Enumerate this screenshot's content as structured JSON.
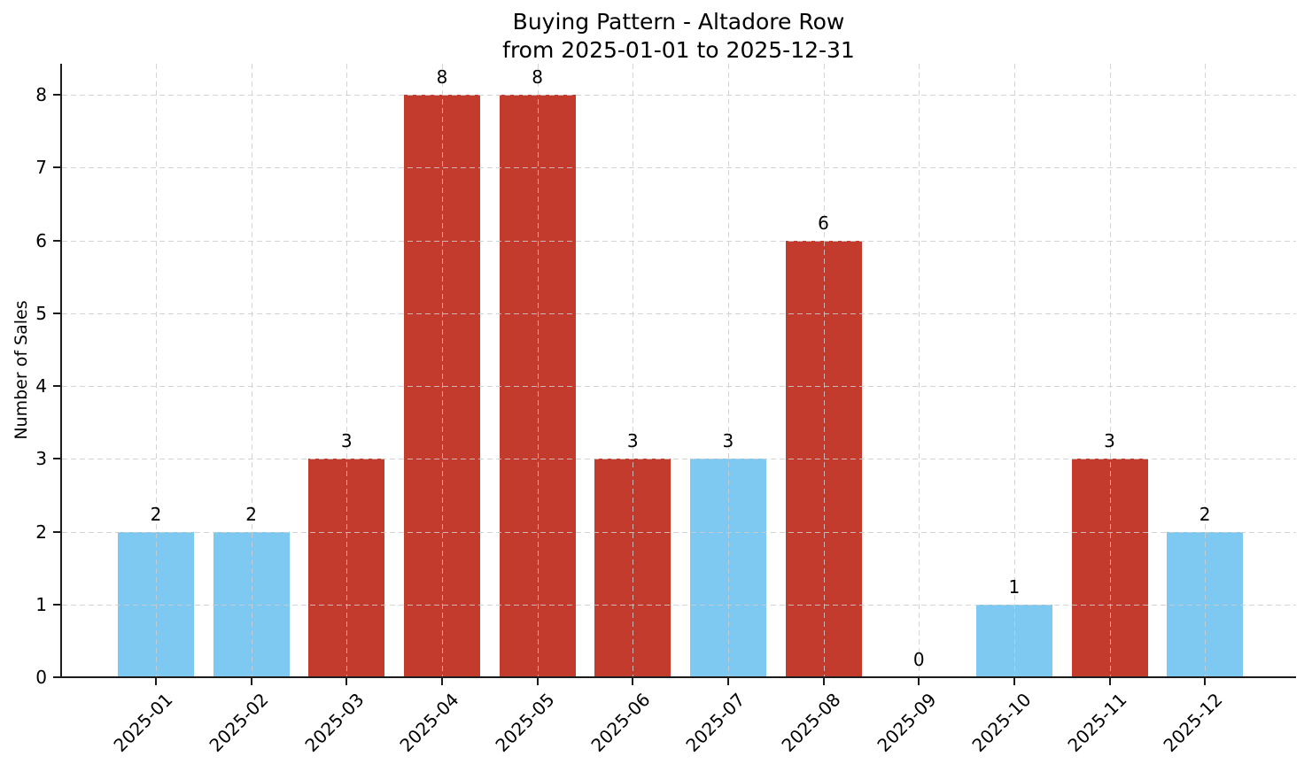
{
  "chart_data": {
    "type": "bar",
    "title": "Buying Pattern - Altadore Row",
    "subtitle": "from 2025-01-01 to 2025-12-31",
    "ylabel": "Number of Sales",
    "xlabel": "",
    "categories": [
      "2025-01",
      "2025-02",
      "2025-03",
      "2025-04",
      "2025-05",
      "2025-06",
      "2025-07",
      "2025-08",
      "2025-09",
      "2025-10",
      "2025-11",
      "2025-12"
    ],
    "values": [
      2,
      2,
      3,
      8,
      8,
      3,
      3,
      6,
      0,
      1,
      3,
      2
    ],
    "value_labels": [
      "2",
      "2",
      "3",
      "8",
      "8",
      "3",
      "3",
      "6",
      "0",
      "1",
      "3",
      "2"
    ],
    "bar_colors": [
      "#7ec9f2",
      "#7ec9f2",
      "#c23b2c",
      "#c23b2c",
      "#c23b2c",
      "#c23b2c",
      "#7ec9f2",
      "#c23b2c",
      "none",
      "#7ec9f2",
      "#c23b2c",
      "#7ec9f2"
    ],
    "yticks": [
      "0",
      "1",
      "2",
      "3",
      "4",
      "5",
      "6",
      "7",
      "8"
    ],
    "ylim": [
      0,
      8.43
    ],
    "grid": true,
    "grid_style": "dashed",
    "legend": "none",
    "colors": {
      "highlight_red": "#c23b2c",
      "base_blue": "#7ec9f2",
      "axis": "#1c1c1c",
      "grid": "#cccccc",
      "text": "#000000"
    }
  }
}
